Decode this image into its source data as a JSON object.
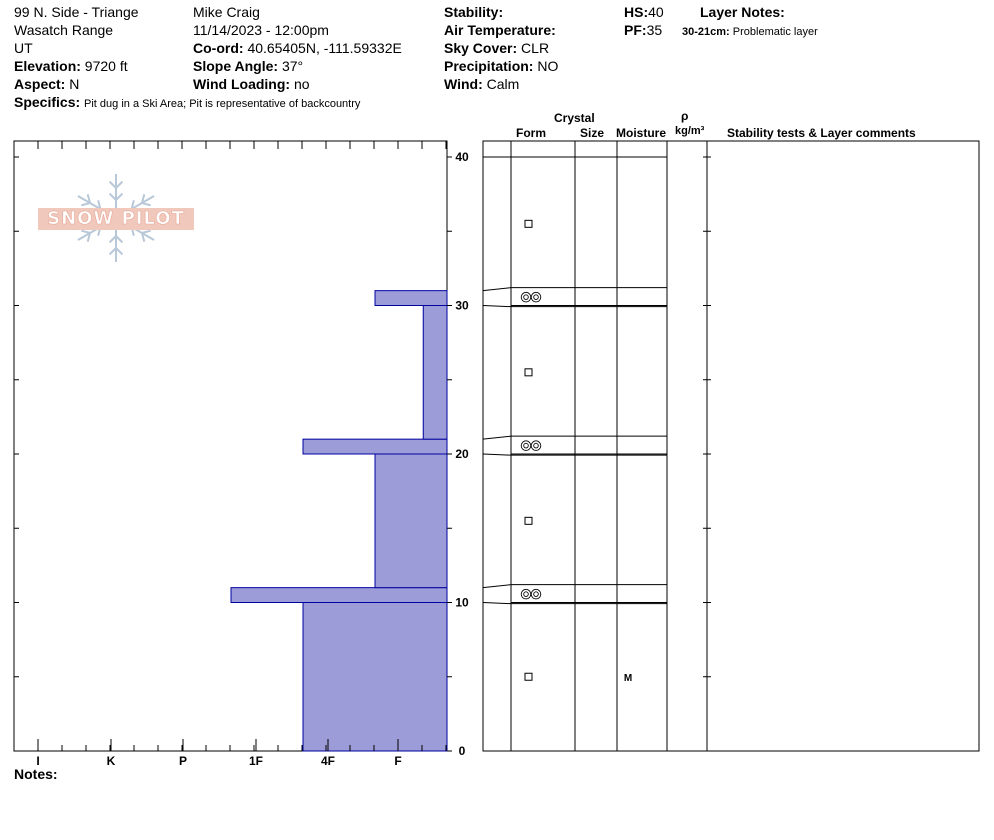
{
  "header": {
    "location": "99 N. Side - Triange",
    "range": "Wasatch Range",
    "state": "UT",
    "elevation_label": "Elevation:",
    "elevation": "9720 ft",
    "aspect_label": "Aspect:",
    "aspect": "N",
    "specifics_label": "Specifics:",
    "specifics": "Pit dug in a Ski Area; Pit is representative of backcountry",
    "observer": "Mike Craig",
    "datetime": "11/14/2023 - 12:00pm",
    "coord_label": "Co-ord:",
    "coord": "40.65405N, -111.59332E",
    "slope_label": "Slope Angle:",
    "slope": "37°",
    "wind_loading_label": "Wind Loading:",
    "wind_loading": "no",
    "stability_label": "Stability:",
    "stability": "",
    "air_temp_label": "Air Temperature:",
    "air_temp": "",
    "sky_label": "Sky Cover:",
    "sky": "CLR",
    "precip_label": "Precipitation:",
    "precip": "NO",
    "wind_label": "Wind:",
    "wind": "Calm",
    "hs_label": "HS:",
    "hs": "40",
    "pf_label": "PF:",
    "pf": "35",
    "layer_notes_label": "Layer Notes:",
    "layer_note_range": "30-21cm:",
    "layer_note_text": "Problematic layer"
  },
  "columns": {
    "crystal": "Crystal",
    "form": "Form",
    "size": "Size",
    "moisture": "Moisture",
    "rho": "ρ",
    "density_unit": "kg/m³",
    "stability_comments": "Stability tests & Layer comments"
  },
  "logo_text": "SNOW PILOT",
  "notes_label": "Notes:",
  "colors": {
    "hardness_fill": "#9c9cd8",
    "hardness_stroke": "#0000a0",
    "logo": "#e8a898",
    "flake": "#b8c8d8"
  },
  "chart_data": {
    "type": "bar",
    "orientation": "horizontal",
    "description_axis_x": "hand hardness",
    "x_categories": [
      "I",
      "K",
      "P",
      "1F",
      "4F",
      "F"
    ],
    "y_ticks": [
      0,
      10,
      20,
      30,
      40
    ],
    "ylim": [
      0,
      40
    ],
    "layers": [
      {
        "bottom": 0,
        "top": 10,
        "hardness": "1F"
      },
      {
        "bottom": 10,
        "top": 11,
        "hardness": "P"
      },
      {
        "bottom": 11,
        "top": 20,
        "hardness": "4F"
      },
      {
        "bottom": 20,
        "top": 21,
        "hardness": "1F"
      },
      {
        "bottom": 21,
        "top": 30,
        "hardness": "F-"
      },
      {
        "bottom": 30,
        "top": 31,
        "hardness": "4F"
      },
      {
        "bottom": 31,
        "top": 40,
        "hardness": "F"
      }
    ],
    "hardness_scale": {
      "F": 0,
      "F-": 0.33,
      "4F": 1,
      "1F": 2,
      "P": 3,
      "K": 4,
      "I": 5
    },
    "profile_rows": [
      {
        "bottom": 31,
        "top": 40,
        "form": "□",
        "moisture": ""
      },
      {
        "bottom": 30,
        "top": 31,
        "form": "◎◎",
        "moisture": ""
      },
      {
        "bottom": 21,
        "top": 30,
        "form": "□",
        "moisture": ""
      },
      {
        "bottom": 20,
        "top": 21,
        "form": "◎◎",
        "moisture": ""
      },
      {
        "bottom": 11,
        "top": 20,
        "form": "□",
        "moisture": ""
      },
      {
        "bottom": 10,
        "top": 11,
        "form": "◎◎",
        "moisture": ""
      },
      {
        "bottom": 0,
        "top": 10,
        "form": "□",
        "moisture": "M"
      }
    ]
  }
}
